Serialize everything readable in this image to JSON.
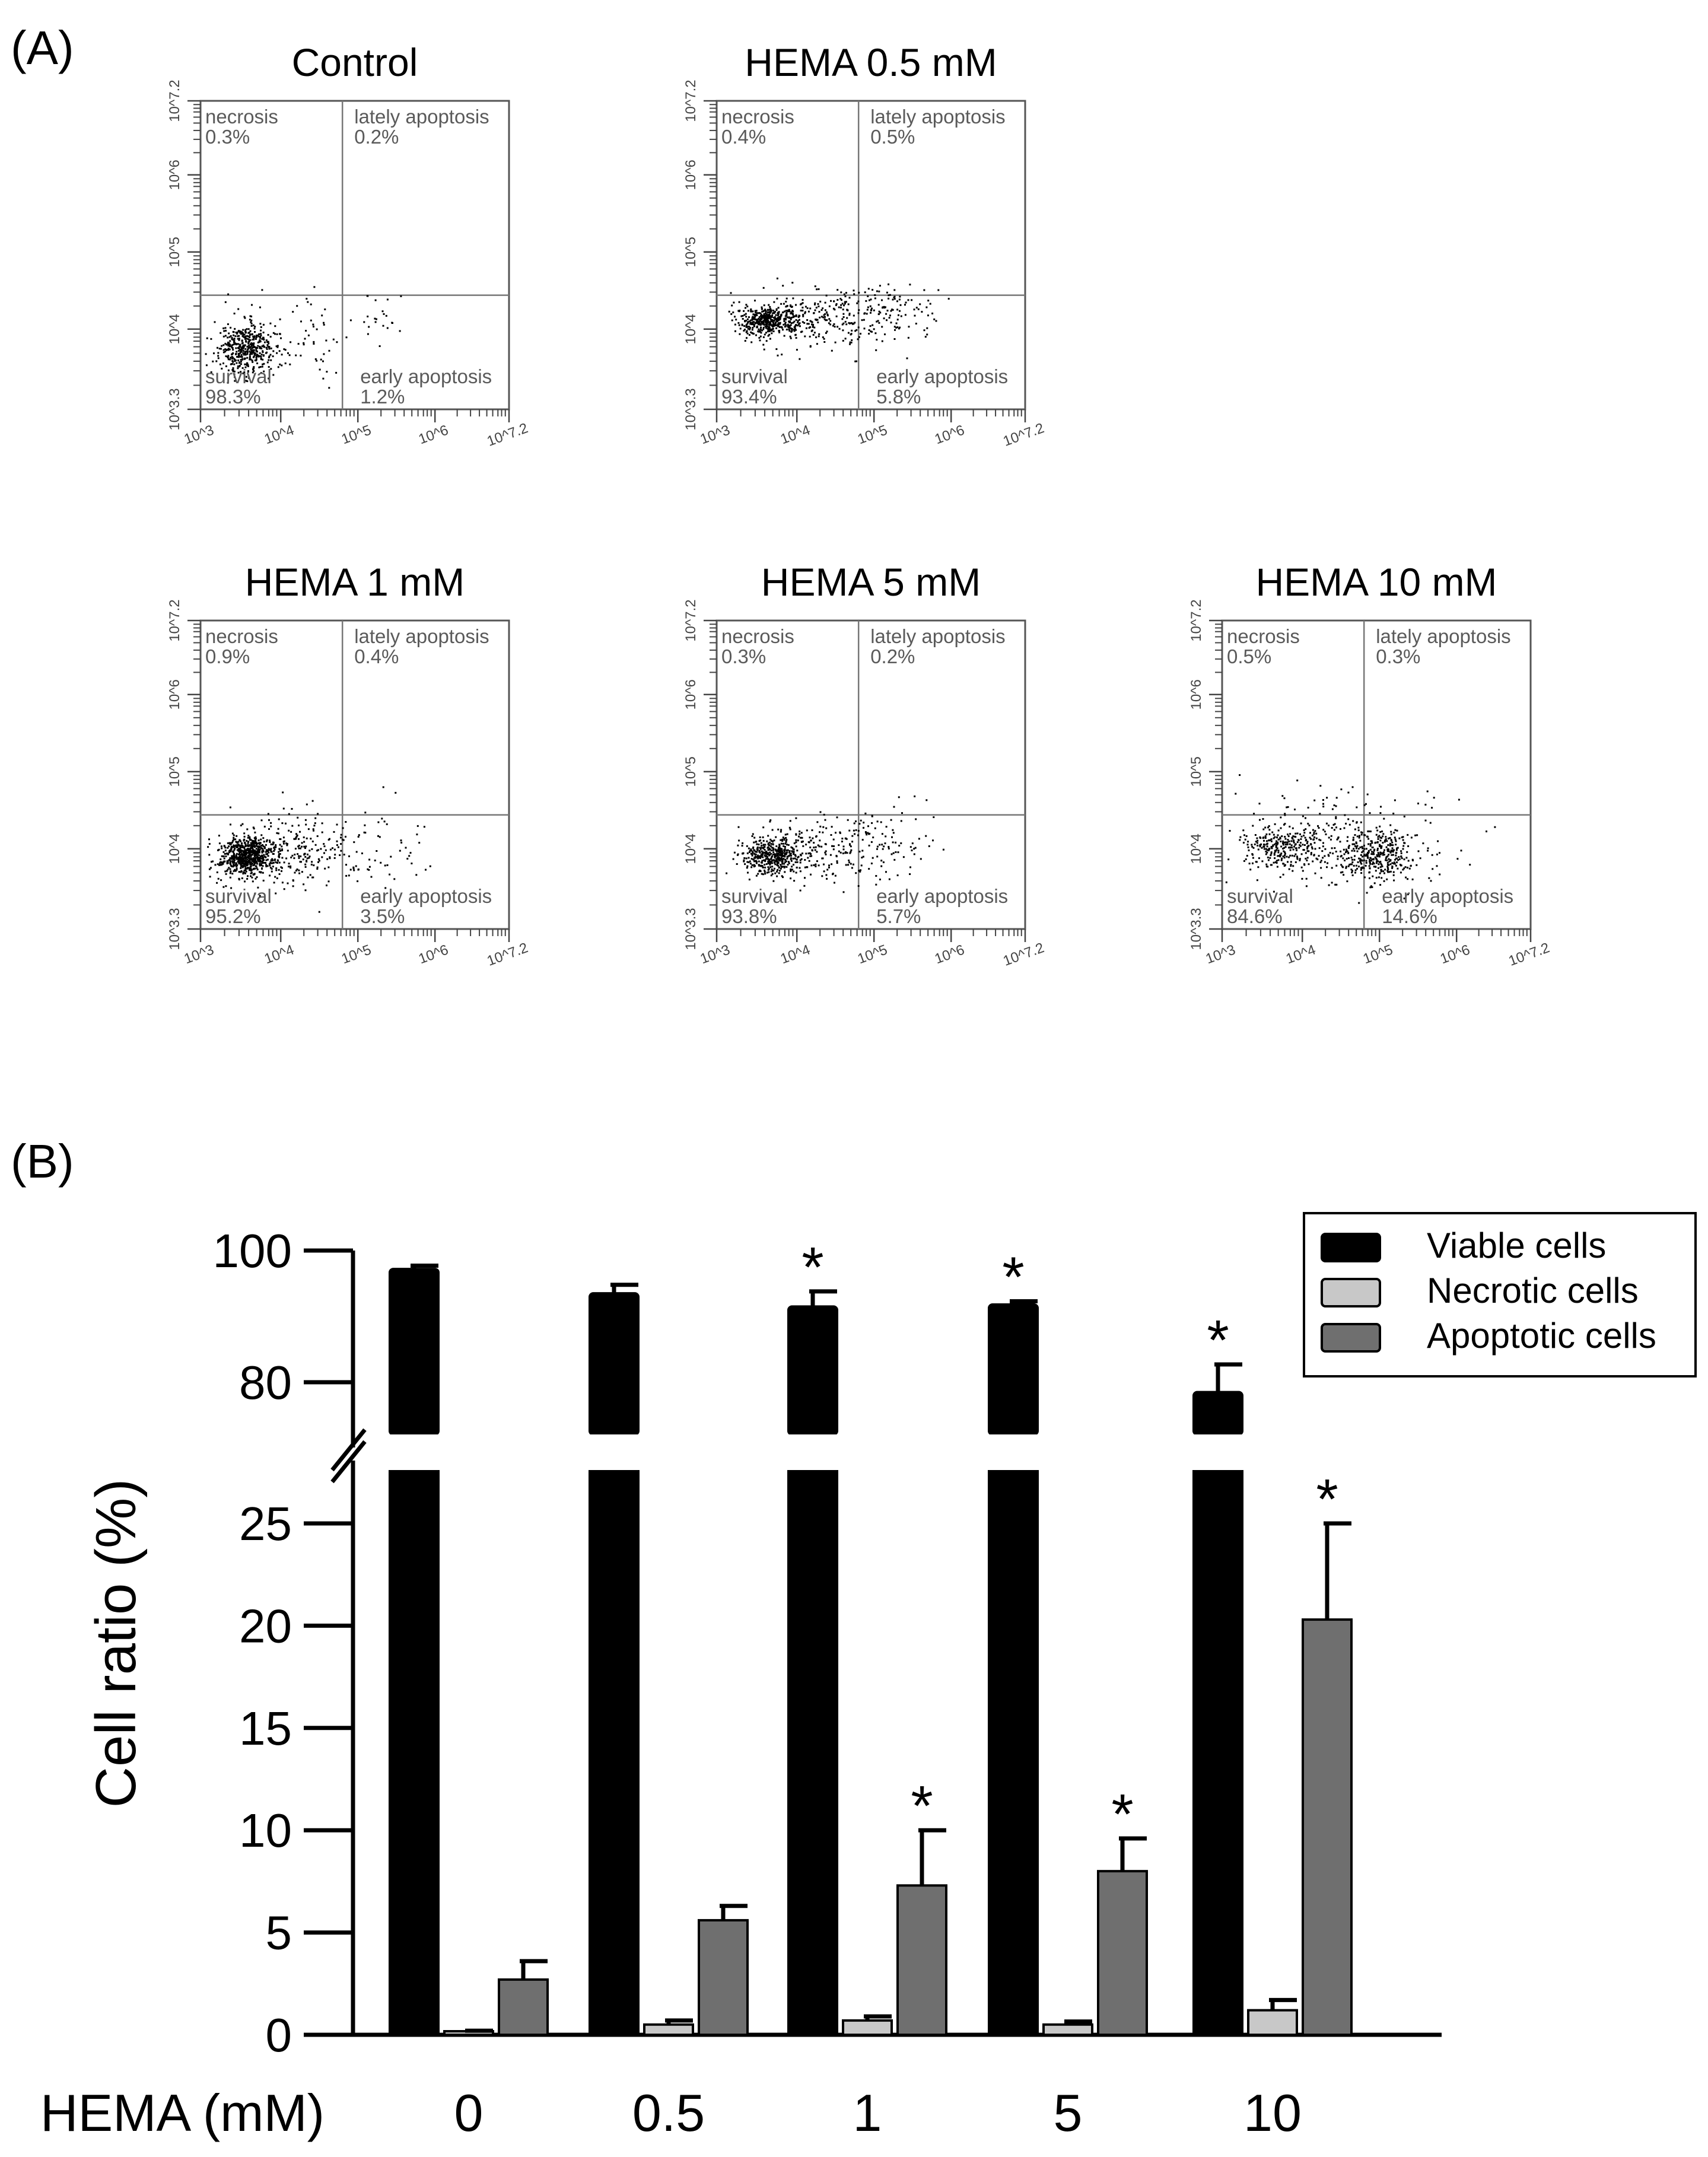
{
  "panel_a": {
    "label": "(A)",
    "quadrant_names": {
      "ul": "necrosis",
      "ur": "lately apoptosis",
      "ll": "survival",
      "lr": "early apoptosis"
    },
    "axis_ticks": {
      "x": [
        "10^3",
        "10^4",
        "10^5",
        "10^6",
        "10^7.2"
      ],
      "y": [
        "10^3.3",
        "10^4",
        "10^5",
        "10^6",
        "10^7.2"
      ]
    },
    "plots": [
      {
        "title": "Control",
        "necrosis": "0.3%",
        "late": "0.2%",
        "survival": "98.3%",
        "early": "1.2%"
      },
      {
        "title": "HEMA 0.5 mM",
        "necrosis": "0.4%",
        "late": "0.5%",
        "survival": "93.4%",
        "early": "5.8%"
      },
      {
        "title": "HEMA 1 mM",
        "necrosis": "0.9%",
        "late": "0.4%",
        "survival": "95.2%",
        "early": "3.5%"
      },
      {
        "title": "HEMA 5 mM",
        "necrosis": "0.3%",
        "late": "0.2%",
        "survival": "93.8%",
        "early": "5.7%"
      },
      {
        "title": "HEMA 10 mM",
        "necrosis": "0.5%",
        "late": "0.3%",
        "survival": "84.6%",
        "early": "14.6%"
      }
    ]
  },
  "panel_b": {
    "label": "(B)"
  },
  "chart_data": {
    "type": "bar",
    "ylabel": "Cell ratio (%)",
    "xlabel": "HEMA (mM)",
    "categories": [
      "0",
      "0.5",
      "1",
      "5",
      "10"
    ],
    "axis_break": {
      "lower_range": [
        0,
        25
      ],
      "upper_ticks": [
        80,
        100
      ],
      "lower_ticks": [
        0,
        5,
        10,
        15,
        20,
        25
      ]
    },
    "series": [
      {
        "name": "Viable cells",
        "color": "#000000",
        "values": [
          97.2,
          93.5,
          91.5,
          91.8,
          78.5
        ],
        "errors": [
          0.5,
          1.3,
          2.3,
          0.5,
          4.2
        ],
        "significant": [
          false,
          false,
          true,
          true,
          true
        ]
      },
      {
        "name": "Necrotic cells",
        "color": "#c8c8c8",
        "values": [
          0.15,
          0.5,
          0.7,
          0.5,
          1.2
        ],
        "errors": [
          0.05,
          0.2,
          0.2,
          0.15,
          0.5
        ],
        "significant": [
          false,
          false,
          false,
          false,
          false
        ]
      },
      {
        "name": "Apoptotic cells",
        "color": "#6f6f6f",
        "values": [
          2.7,
          5.6,
          7.3,
          8.0,
          20.3
        ],
        "errors": [
          0.9,
          0.7,
          2.7,
          1.6,
          4.7
        ],
        "significant": [
          false,
          false,
          true,
          true,
          true
        ]
      }
    ],
    "star_label": "*",
    "legend": [
      "Viable cells",
      "Necrotic cells",
      "Apoptotic cells"
    ]
  }
}
